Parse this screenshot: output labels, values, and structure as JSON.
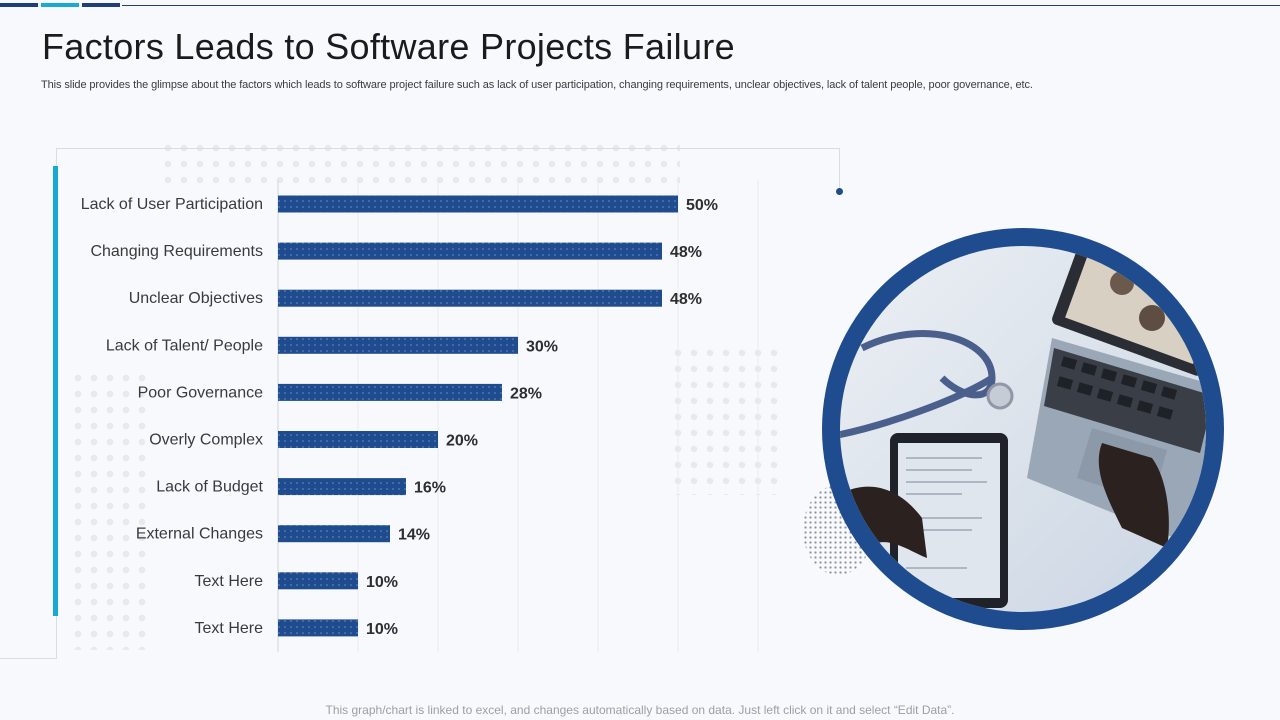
{
  "slide": {
    "title": "Factors Leads to Software Projects Failure",
    "subtitle": "This slide provides the glimpse about the factors which leads to software project failure such as lack of user participation, changing requirements, unclear objectives, lack of talent people, poor governance, etc.",
    "footnote": "This graph/chart is linked to excel, and changes automatically based on data. Just left click on it and select “Edit Data”."
  },
  "colors": {
    "bar": "#1f4c8f",
    "accent": "#1aa9d6",
    "ring": "#1f4c8f",
    "title": "#1b1b1b",
    "topbar": [
      "#1f3f7a",
      "#1aa9d6",
      "#1f3f7a"
    ]
  },
  "chart_data": {
    "type": "bar",
    "orientation": "horizontal",
    "categories": [
      "Lack of User Participation",
      "Changing Requirements",
      "Unclear Objectives",
      "Lack of Talent/ People",
      "Poor Governance",
      "Overly Complex",
      "Lack of Budget",
      "External Changes",
      "Text Here",
      "Text Here"
    ],
    "values": [
      50,
      48,
      48,
      30,
      28,
      20,
      16,
      14,
      10,
      10
    ],
    "value_labels": [
      "50%",
      "48%",
      "48%",
      "30%",
      "28%",
      "20%",
      "16%",
      "14%",
      "10%",
      "10%"
    ],
    "xlim": [
      0,
      60
    ],
    "grid": true,
    "legend": "none"
  }
}
